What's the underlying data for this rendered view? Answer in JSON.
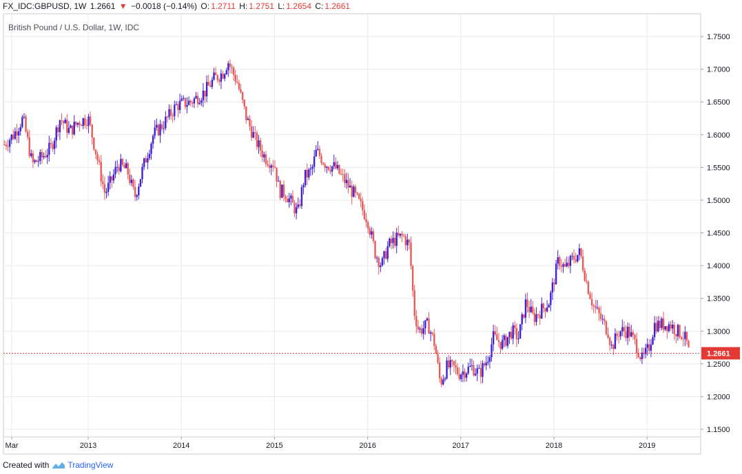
{
  "header": {
    "symbol": "FX_IDC:GBPUSD, 1W",
    "last": "1.2661",
    "change": "−0.0018 (−0.14%)",
    "open_label": "O:",
    "open": "1.2711",
    "high_label": "H:",
    "high": "1.2751",
    "low_label": "L:",
    "low": "1.2654",
    "close_label": "C:",
    "close": "1.2661"
  },
  "footer": {
    "created_with": "Created with",
    "brand": "TradingView"
  },
  "colors": {
    "up": "#3f20d6",
    "down": "#e8595a",
    "price_line": "#e53935",
    "grid": "#e6eaf0",
    "axis_text": "#131722"
  },
  "chart_data": {
    "type": "candlestick",
    "title": "British Pound / U.S. Dollar, 1W, IDC",
    "ylim": [
      1.14,
      1.775
    ],
    "yticks": [
      "1.1500",
      "1.2000",
      "1.2500",
      "1.3000",
      "1.3500",
      "1.4000",
      "1.4500",
      "1.5000",
      "1.5500",
      "1.6000",
      "1.6500",
      "1.7000",
      "1.7500"
    ],
    "xticks": [
      {
        "label": "Mar",
        "t": 2012.17
      },
      {
        "label": "2013",
        "t": 2013.0
      },
      {
        "label": "2014",
        "t": 2014.0
      },
      {
        "label": "2015",
        "t": 2015.0
      },
      {
        "label": "2016",
        "t": 2016.0
      },
      {
        "label": "2017",
        "t": 2017.0
      },
      {
        "label": "2018",
        "t": 2018.0
      },
      {
        "label": "2019",
        "t": 2019.0
      }
    ],
    "xlim": [
      2012.1,
      2019.65
    ],
    "last_price": 1.2661,
    "last_price_label": "1.2661",
    "close_path": [
      [
        2012.1,
        1.585
      ],
      [
        2012.2,
        1.6
      ],
      [
        2012.3,
        1.625
      ],
      [
        2012.4,
        1.555
      ],
      [
        2012.5,
        1.565
      ],
      [
        2012.6,
        1.58
      ],
      [
        2012.7,
        1.625
      ],
      [
        2012.8,
        1.605
      ],
      [
        2012.9,
        1.62
      ],
      [
        2013.0,
        1.625
      ],
      [
        2013.08,
        1.575
      ],
      [
        2013.18,
        1.51
      ],
      [
        2013.25,
        1.53
      ],
      [
        2013.32,
        1.555
      ],
      [
        2013.42,
        1.545
      ],
      [
        2013.5,
        1.505
      ],
      [
        2013.6,
        1.555
      ],
      [
        2013.7,
        1.6
      ],
      [
        2013.8,
        1.615
      ],
      [
        2013.95,
        1.645
      ],
      [
        2014.1,
        1.65
      ],
      [
        2014.25,
        1.665
      ],
      [
        2014.35,
        1.685
      ],
      [
        2014.45,
        1.695
      ],
      [
        2014.5,
        1.712
      ],
      [
        2014.6,
        1.68
      ],
      [
        2014.7,
        1.625
      ],
      [
        2014.8,
        1.59
      ],
      [
        2014.9,
        1.565
      ],
      [
        2015.0,
        1.555
      ],
      [
        2015.05,
        1.515
      ],
      [
        2015.12,
        1.51
      ],
      [
        2015.25,
        1.48
      ],
      [
        2015.32,
        1.535
      ],
      [
        2015.4,
        1.545
      ],
      [
        2015.45,
        1.575
      ],
      [
        2015.55,
        1.555
      ],
      [
        2015.65,
        1.55
      ],
      [
        2015.75,
        1.53
      ],
      [
        2015.85,
        1.51
      ],
      [
        2015.93,
        1.49
      ],
      [
        2016.0,
        1.47
      ],
      [
        2016.08,
        1.42
      ],
      [
        2016.15,
        1.4
      ],
      [
        2016.22,
        1.43
      ],
      [
        2016.3,
        1.44
      ],
      [
        2016.38,
        1.445
      ],
      [
        2016.45,
        1.43
      ],
      [
        2016.48,
        1.37
      ],
      [
        2016.5,
        1.33
      ],
      [
        2016.55,
        1.3
      ],
      [
        2016.65,
        1.31
      ],
      [
        2016.72,
        1.28
      ],
      [
        2016.78,
        1.22
      ],
      [
        2016.85,
        1.245
      ],
      [
        2016.92,
        1.245
      ],
      [
        2016.98,
        1.235
      ],
      [
        2017.05,
        1.24
      ],
      [
        2017.12,
        1.245
      ],
      [
        2017.2,
        1.235
      ],
      [
        2017.28,
        1.255
      ],
      [
        2017.35,
        1.29
      ],
      [
        2017.45,
        1.28
      ],
      [
        2017.55,
        1.3
      ],
      [
        2017.62,
        1.29
      ],
      [
        2017.7,
        1.345
      ],
      [
        2017.78,
        1.32
      ],
      [
        2017.85,
        1.33
      ],
      [
        2017.95,
        1.345
      ],
      [
        2018.05,
        1.41
      ],
      [
        2018.12,
        1.395
      ],
      [
        2018.2,
        1.41
      ],
      [
        2018.28,
        1.42
      ],
      [
        2018.35,
        1.375
      ],
      [
        2018.42,
        1.34
      ],
      [
        2018.5,
        1.32
      ],
      [
        2018.58,
        1.3
      ],
      [
        2018.62,
        1.275
      ],
      [
        2018.7,
        1.3
      ],
      [
        2018.8,
        1.3
      ],
      [
        2018.88,
        1.28
      ],
      [
        2018.95,
        1.255
      ],
      [
        2019.02,
        1.275
      ],
      [
        2019.08,
        1.31
      ],
      [
        2019.18,
        1.31
      ],
      [
        2019.25,
        1.31
      ],
      [
        2019.32,
        1.3
      ],
      [
        2019.38,
        1.295
      ],
      [
        2019.42,
        1.285
      ],
      [
        2019.45,
        1.266
      ]
    ]
  }
}
